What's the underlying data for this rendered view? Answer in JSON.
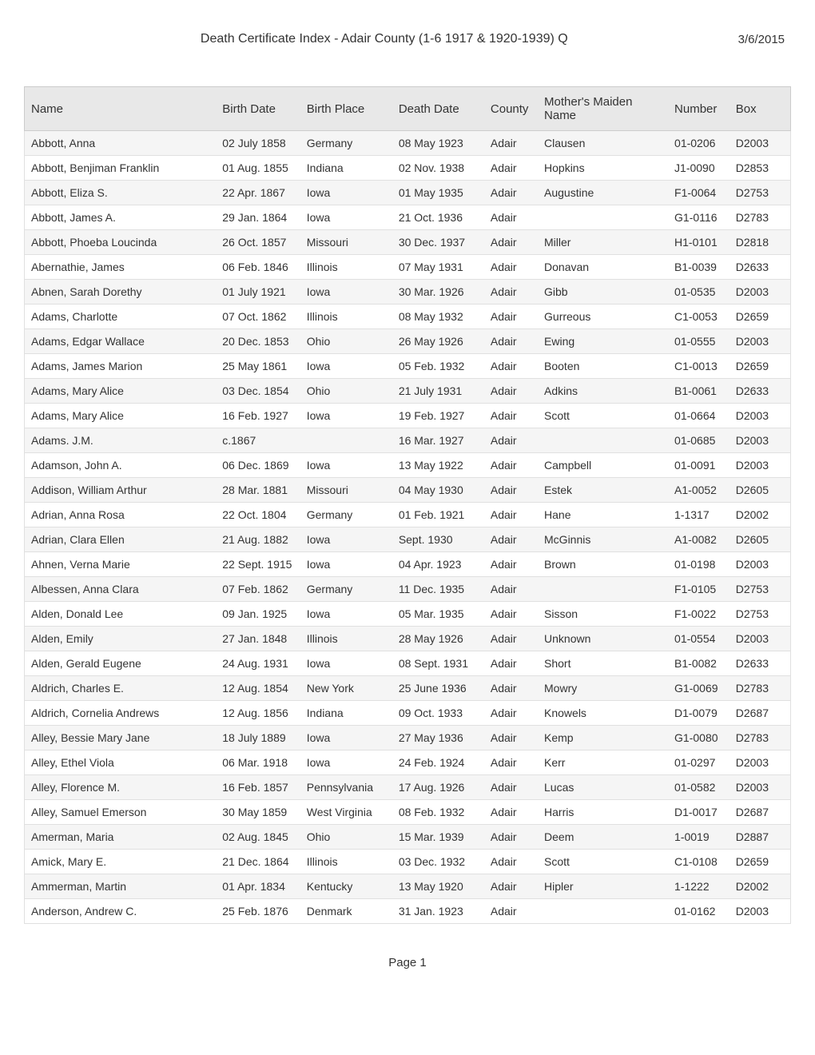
{
  "header": {
    "title": "Death Certificate Index - Adair County (1-6 1917 & 1920-1939) Q",
    "date": "3/6/2015"
  },
  "table": {
    "columns": [
      "Name",
      "Birth Date",
      "Birth Place",
      "Death Date",
      "County",
      "Mother's Maiden Name",
      "Number",
      "Box"
    ],
    "column_classes": [
      "col-name",
      "col-birthdate",
      "col-birthplace",
      "col-deathdate",
      "col-county",
      "col-mother",
      "col-number",
      "col-box"
    ],
    "rows": [
      [
        "Abbott, Anna",
        "02 July 1858",
        "Germany",
        "08 May 1923",
        "Adair",
        "Clausen",
        "01-0206",
        "D2003"
      ],
      [
        "Abbott, Benjiman Franklin",
        "01 Aug. 1855",
        "Indiana",
        "02 Nov. 1938",
        "Adair",
        "Hopkins",
        "J1-0090",
        "D2853"
      ],
      [
        "Abbott, Eliza S.",
        "22 Apr. 1867",
        "Iowa",
        "01 May 1935",
        "Adair",
        "Augustine",
        "F1-0064",
        "D2753"
      ],
      [
        "Abbott, James A.",
        "29 Jan. 1864",
        "Iowa",
        "21 Oct. 1936",
        "Adair",
        "",
        "G1-0116",
        "D2783"
      ],
      [
        "Abbott, Phoeba Loucinda",
        "26 Oct. 1857",
        "Missouri",
        "30 Dec. 1937",
        "Adair",
        "Miller",
        "H1-0101",
        "D2818"
      ],
      [
        "Abernathie, James",
        "06 Feb. 1846",
        "Illinois",
        "07 May 1931",
        "Adair",
        "Donavan",
        "B1-0039",
        "D2633"
      ],
      [
        "Abnen, Sarah Dorethy",
        "01 July 1921",
        "Iowa",
        "30 Mar. 1926",
        "Adair",
        "Gibb",
        "01-0535",
        "D2003"
      ],
      [
        "Adams, Charlotte",
        "07 Oct. 1862",
        "Illinois",
        "08 May 1932",
        "Adair",
        "Gurreous",
        "C1-0053",
        "D2659"
      ],
      [
        "Adams, Edgar Wallace",
        "20 Dec. 1853",
        "Ohio",
        "26 May 1926",
        "Adair",
        "Ewing",
        "01-0555",
        "D2003"
      ],
      [
        "Adams, James Marion",
        "25 May 1861",
        "Iowa",
        "05 Feb. 1932",
        "Adair",
        "Booten",
        "C1-0013",
        "D2659"
      ],
      [
        "Adams, Mary Alice",
        "03 Dec. 1854",
        "Ohio",
        "21 July 1931",
        "Adair",
        "Adkins",
        "B1-0061",
        "D2633"
      ],
      [
        "Adams, Mary Alice",
        "16 Feb. 1927",
        "Iowa",
        "19 Feb. 1927",
        "Adair",
        "Scott",
        "01-0664",
        "D2003"
      ],
      [
        "Adams. J.M.",
        "c.1867",
        "",
        "16 Mar. 1927",
        "Adair",
        "",
        "01-0685",
        "D2003"
      ],
      [
        "Adamson, John A.",
        "06 Dec. 1869",
        "Iowa",
        "13 May 1922",
        "Adair",
        "Campbell",
        "01-0091",
        "D2003"
      ],
      [
        "Addison, William Arthur",
        "28 Mar. 1881",
        "Missouri",
        "04 May 1930",
        "Adair",
        "Estek",
        "A1-0052",
        "D2605"
      ],
      [
        "Adrian, Anna Rosa",
        "22 Oct. 1804",
        "Germany",
        "01 Feb. 1921",
        "Adair",
        "Hane",
        "1-1317",
        "D2002"
      ],
      [
        "Adrian, Clara Ellen",
        "21 Aug. 1882",
        "Iowa",
        "Sept. 1930",
        "Adair",
        "McGinnis",
        "A1-0082",
        "D2605"
      ],
      [
        "Ahnen, Verna Marie",
        "22 Sept. 1915",
        "Iowa",
        "04 Apr. 1923",
        "Adair",
        "Brown",
        "01-0198",
        "D2003"
      ],
      [
        "Albessen, Anna Clara",
        "07 Feb. 1862",
        "Germany",
        "11 Dec. 1935",
        "Adair",
        "",
        "F1-0105",
        "D2753"
      ],
      [
        "Alden, Donald Lee",
        "09 Jan. 1925",
        "Iowa",
        "05 Mar. 1935",
        "Adair",
        "Sisson",
        "F1-0022",
        "D2753"
      ],
      [
        "Alden, Emily",
        "27 Jan. 1848",
        "Illinois",
        "28 May 1926",
        "Adair",
        "Unknown",
        "01-0554",
        "D2003"
      ],
      [
        "Alden, Gerald Eugene",
        "24 Aug. 1931",
        "Iowa",
        "08 Sept. 1931",
        "Adair",
        "Short",
        "B1-0082",
        "D2633"
      ],
      [
        "Aldrich, Charles E.",
        "12 Aug. 1854",
        "New York",
        "25 June 1936",
        "Adair",
        "Mowry",
        "G1-0069",
        "D2783"
      ],
      [
        "Aldrich, Cornelia Andrews",
        "12 Aug. 1856",
        "Indiana",
        "09 Oct. 1933",
        "Adair",
        "Knowels",
        "D1-0079",
        "D2687"
      ],
      [
        "Alley, Bessie Mary Jane",
        "18 July 1889",
        "Iowa",
        "27 May 1936",
        "Adair",
        "Kemp",
        "G1-0080",
        "D2783"
      ],
      [
        "Alley, Ethel Viola",
        "06 Mar. 1918",
        "Iowa",
        "24 Feb. 1924",
        "Adair",
        "Kerr",
        "01-0297",
        "D2003"
      ],
      [
        "Alley, Florence M.",
        "16 Feb. 1857",
        "Pennsylvania",
        "17 Aug. 1926",
        "Adair",
        "Lucas",
        "01-0582",
        "D2003"
      ],
      [
        "Alley, Samuel Emerson",
        "30 May 1859",
        "West Virginia",
        "08 Feb. 1932",
        "Adair",
        "Harris",
        "D1-0017",
        "D2687"
      ],
      [
        "Amerman, Maria",
        "02 Aug. 1845",
        "Ohio",
        "15 Mar. 1939",
        "Adair",
        "Deem",
        "1-0019",
        "D2887"
      ],
      [
        "Amick, Mary E.",
        "21 Dec. 1864",
        "Illinois",
        "03 Dec. 1932",
        "Adair",
        "Scott",
        "C1-0108",
        "D2659"
      ],
      [
        "Ammerman, Martin",
        "01 Apr. 1834",
        "Kentucky",
        "13 May 1920",
        "Adair",
        "Hipler",
        "1-1222",
        "D2002"
      ],
      [
        "Anderson, Andrew C.",
        "25 Feb. 1876",
        "Denmark",
        "31 Jan. 1923",
        "Adair",
        "",
        "01-0162",
        "D2003"
      ]
    ]
  },
  "footer": {
    "page_number": "Page 1"
  },
  "styling": {
    "header_bg": "#e8e8e8",
    "row_odd_bg": "#f5f5f5",
    "row_even_bg": "#ffffff",
    "border_color": "#e0e0e0",
    "text_color": "#333333",
    "body_font_size": 14,
    "header_font_size": 15,
    "title_font_size": 16
  }
}
